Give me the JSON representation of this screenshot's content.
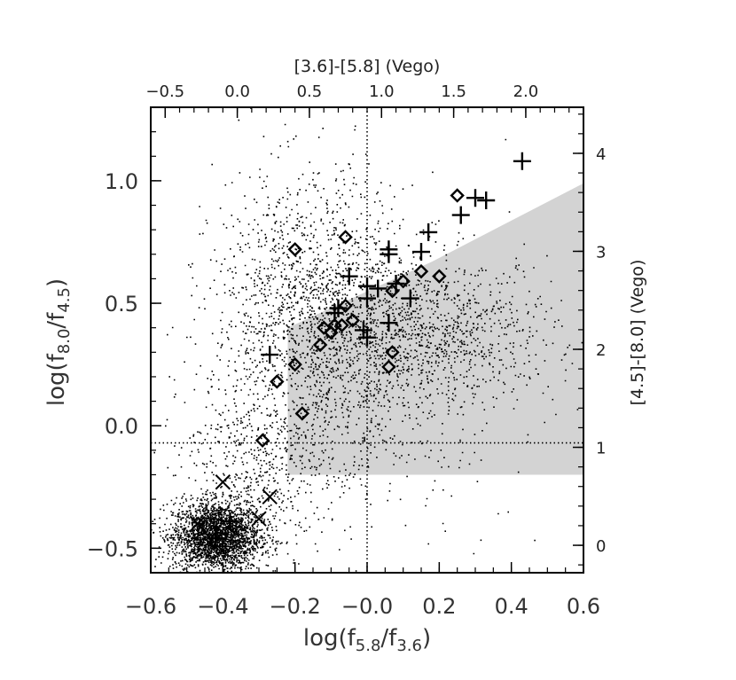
{
  "chart_data": {
    "type": "scatter",
    "xlabel": "log(f5.8/f3.6)",
    "xlabel_parts": {
      "pre": "log(f",
      "sub1": "5.8",
      "mid": "/f",
      "sub2": "3.6",
      "post": ")"
    },
    "ylabel_parts": {
      "pre": "log(f",
      "sub1": "8.0",
      "mid": "/f",
      "sub2": "4.5",
      "post": ")"
    },
    "x2label": "[3.6]-[5.8] (Vego)",
    "y2label": "[4.5]-[8.0] (Vego)",
    "xlim": [
      -0.6,
      0.6
    ],
    "ylim": [
      -0.6,
      1.3
    ],
    "x_ticks": [
      -0.6,
      -0.4,
      -0.2,
      0.0,
      0.2,
      0.4,
      0.6
    ],
    "x_tick_labels": [
      "−0.6",
      "−0.4",
      "−0.2",
      "−0.0",
      "0.2",
      "0.4",
      "0.6"
    ],
    "y_ticks": [
      -0.5,
      0.0,
      0.5,
      1.0
    ],
    "y_tick_labels": [
      "−0.5",
      "0.0",
      "0.5",
      "1.0"
    ],
    "top_ticks": [
      -0.5,
      0.0,
      0.5,
      1.0,
      1.5,
      2.0
    ],
    "top_tick_labels": [
      "−0.5",
      "0.0",
      "0.5",
      "1.0",
      "1.5",
      "2.0"
    ],
    "right_ticks": [
      0,
      1,
      2,
      3,
      4
    ],
    "right_tick_labels": [
      "0",
      "1",
      "2",
      "3",
      "4"
    ],
    "reference_lines": {
      "x": 0.0,
      "y": -0.07
    },
    "selection_region": [
      [
        -0.22,
        -0.2
      ],
      [
        0.6,
        -0.2
      ],
      [
        0.6,
        0.99
      ],
      [
        0.18,
        0.67
      ],
      [
        -0.22,
        0.4
      ]
    ],
    "colors": {
      "region": "#d3d3d3",
      "points": "#000000",
      "frame": "#000000"
    },
    "series": [
      {
        "marker": "diamond",
        "points": [
          [
            -0.06,
            0.77
          ],
          [
            -0.2,
            0.72
          ],
          [
            0.25,
            0.94
          ],
          [
            0.15,
            0.63
          ],
          [
            0.2,
            0.61
          ],
          [
            0.1,
            0.59
          ],
          [
            0.07,
            0.55
          ],
          [
            -0.06,
            0.49
          ],
          [
            -0.04,
            0.43
          ],
          [
            -0.07,
            0.41
          ],
          [
            -0.09,
            0.41
          ],
          [
            -0.12,
            0.4
          ],
          [
            -0.1,
            0.38
          ],
          [
            -0.13,
            0.33
          ],
          [
            0.07,
            0.3
          ],
          [
            -0.2,
            0.25
          ],
          [
            0.06,
            0.24
          ],
          [
            -0.25,
            0.18
          ],
          [
            -0.18,
            0.05
          ],
          [
            -0.29,
            -0.06
          ]
        ]
      },
      {
        "marker": "plus",
        "points": [
          [
            0.43,
            1.08
          ],
          [
            0.33,
            0.92
          ],
          [
            0.3,
            0.93
          ],
          [
            0.26,
            0.86
          ],
          [
            0.17,
            0.79
          ],
          [
            0.15,
            0.71
          ],
          [
            0.06,
            0.72
          ],
          [
            0.06,
            0.7
          ],
          [
            -0.05,
            0.61
          ],
          [
            0.08,
            0.58
          ],
          [
            0.0,
            0.57
          ],
          [
            0.03,
            0.56
          ],
          [
            0.0,
            0.52
          ],
          [
            0.12,
            0.52
          ],
          [
            -0.08,
            0.48
          ],
          [
            -0.09,
            0.46
          ],
          [
            0.06,
            0.42
          ],
          [
            -0.01,
            0.39
          ],
          [
            0.0,
            0.36
          ],
          [
            -0.27,
            0.29
          ],
          [
            -0.38,
            -0.39
          ],
          [
            -0.42,
            -0.46
          ]
        ]
      },
      {
        "marker": "x",
        "points": [
          [
            -0.4,
            -0.23
          ],
          [
            -0.27,
            -0.29
          ],
          [
            -0.47,
            -0.4
          ],
          [
            -0.3,
            -0.38
          ]
        ]
      }
    ],
    "background_scatter": [
      {
        "cx": -0.42,
        "cy": -0.45,
        "sx": 0.06,
        "sy": 0.07,
        "n": 2600
      },
      {
        "cx": -0.15,
        "cy": 0.45,
        "sx": 0.14,
        "sy": 0.28,
        "n": 1700
      },
      {
        "cx": 0.2,
        "cy": 0.38,
        "sx": 0.16,
        "sy": 0.15,
        "n": 900
      },
      {
        "cx": -0.32,
        "cy": -0.2,
        "sx": 0.1,
        "sy": 0.18,
        "n": 500
      },
      {
        "cx": 0.0,
        "cy": 0.1,
        "sx": 0.2,
        "sy": 0.25,
        "n": 400
      }
    ]
  }
}
